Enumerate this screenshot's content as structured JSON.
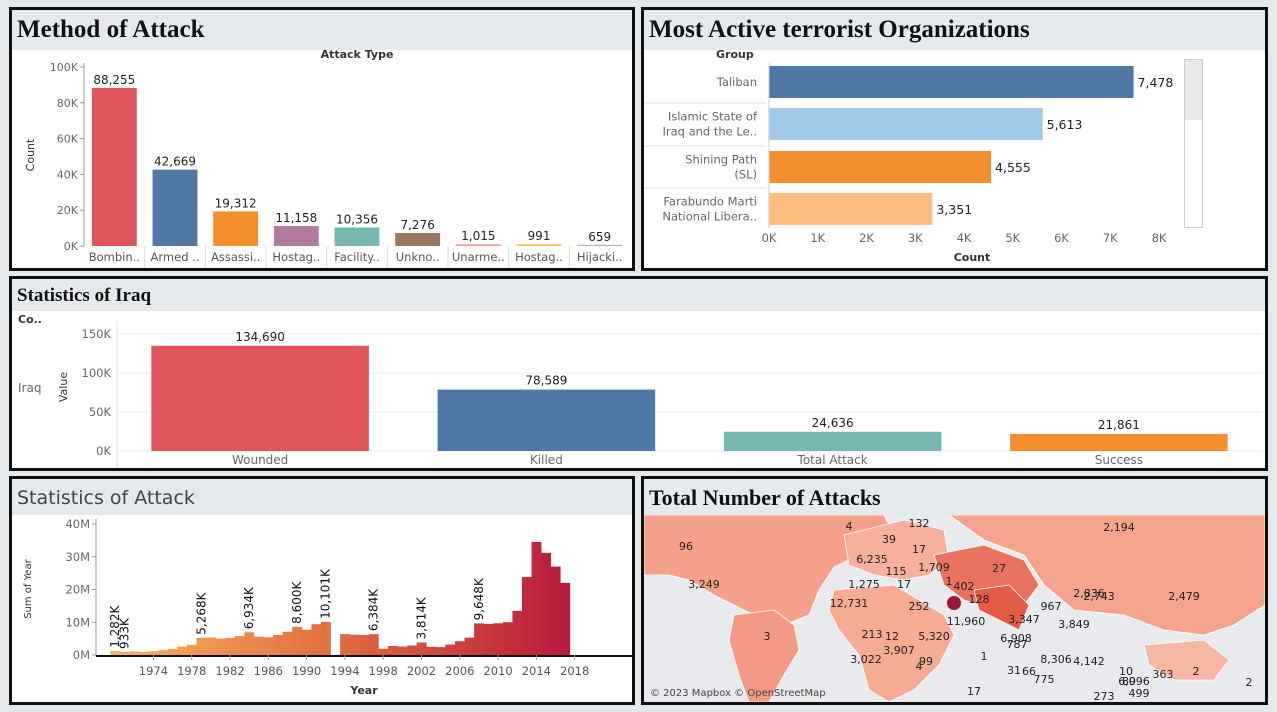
{
  "panels": {
    "method": {
      "title": "Method of Attack"
    },
    "groups": {
      "title": "Most Active terrorist Organizations"
    },
    "iraq": {
      "title": "Statistics of Iraq"
    },
    "attack_stats": {
      "title": "Statistics of Attack"
    },
    "map": {
      "title": "Total Number of Attacks",
      "attribution": "© 2023 Mapbox © OpenStreetMap"
    }
  },
  "colors": {
    "red": "#e15759",
    "blue": "#4e79a7",
    "orange": "#f28e2b",
    "purple": "#b07aa1",
    "teal": "#76b7b2",
    "brown": "#9c755f",
    "pink": "#ff9da7",
    "yellow": "#edc948",
    "grey": "#bab0ac",
    "lightblue": "#a0cbe8",
    "peach": "#ffbe7d"
  },
  "chart_data": [
    {
      "type": "bar",
      "title": "Attack Type",
      "ylabel": "Count",
      "categories": [
        "Bombin..",
        "Armed ..",
        "Assassi..",
        "Hostag..",
        "Facility..",
        "Unkno..",
        "Unarme..",
        "Hostag..",
        "Hijacki.."
      ],
      "values": [
        88255,
        42669,
        19312,
        11158,
        10356,
        7276,
        1015,
        991,
        659
      ],
      "value_labels": [
        "88,255",
        "42,669",
        "19,312",
        "11,158",
        "10,356",
        "7,276",
        "1,015",
        "991",
        "659"
      ],
      "bar_colors": [
        "#e15759",
        "#4e79a7",
        "#f28e2b",
        "#b07aa1",
        "#76b7b2",
        "#9c755f",
        "#ff9da7",
        "#edc948",
        "#bab0ac"
      ],
      "ylim": [
        0,
        100000
      ],
      "yticks": [
        0,
        20000,
        40000,
        60000,
        80000,
        100000
      ],
      "ytick_labels": [
        "0K",
        "20K",
        "40K",
        "60K",
        "80K",
        "100K"
      ]
    },
    {
      "type": "bar",
      "orientation": "horizontal",
      "row_header": "Group",
      "xlabel": "Count",
      "categories": [
        [
          "Taliban"
        ],
        [
          "Islamic State of",
          "Iraq and the Le.."
        ],
        [
          "Shining Path",
          "(SL)"
        ],
        [
          "Farabundo Marti",
          "National Libera.."
        ]
      ],
      "values": [
        7478,
        5613,
        4555,
        3351
      ],
      "value_labels": [
        "7,478",
        "5,613",
        "4,555",
        "3,351"
      ],
      "bar_colors": [
        "#4e79a7",
        "#a0cbe8",
        "#f28e2b",
        "#ffbe7d"
      ],
      "xlim": [
        0,
        8000
      ],
      "xticks": [
        0,
        1000,
        2000,
        3000,
        4000,
        5000,
        6000,
        7000,
        8000
      ],
      "xtick_labels": [
        "0K",
        "1K",
        "2K",
        "3K",
        "4K",
        "5K",
        "6K",
        "7K",
        "8K"
      ]
    },
    {
      "type": "bar",
      "row_header": "Co..",
      "row_label": "Iraq",
      "ylabel": "Value",
      "categories": [
        "Wounded",
        "Killed",
        "Total Attack",
        "Success"
      ],
      "values": [
        134690,
        78589,
        24636,
        21861
      ],
      "value_labels": [
        "134,690",
        "78,589",
        "24,636",
        "21,861"
      ],
      "bar_colors": [
        "#e15759",
        "#4e79a7",
        "#76b7b2",
        "#f28e2b"
      ],
      "ylim": [
        0,
        160000
      ],
      "yticks": [
        0,
        50000,
        100000,
        150000
      ],
      "ytick_labels": [
        "0K",
        "50K",
        "100K",
        "150K"
      ]
    },
    {
      "type": "bar",
      "xlabel": "Year",
      "ylabel": "Sum of Year",
      "years": [
        1970,
        1971,
        1972,
        1973,
        1974,
        1975,
        1976,
        1977,
        1978,
        1979,
        1980,
        1981,
        1982,
        1983,
        1984,
        1985,
        1986,
        1987,
        1988,
        1989,
        1990,
        1991,
        1992,
        1994,
        1995,
        1996,
        1997,
        1998,
        1999,
        2000,
        2001,
        2002,
        2003,
        2004,
        2005,
        2006,
        2007,
        2008,
        2009,
        2010,
        2011,
        2012,
        2013,
        2014,
        2015,
        2016,
        2017
      ],
      "values": [
        1282000,
        933000,
        1120000,
        940000,
        1160000,
        1480000,
        1840000,
        2540000,
        3080000,
        5268000,
        5340000,
        5020000,
        5220000,
        5780000,
        6934000,
        5600000,
        5400000,
        6140000,
        7100000,
        8600000,
        7700000,
        9400000,
        10101000,
        6384000,
        6200000,
        6100000,
        6384000,
        1900000,
        2750000,
        2600000,
        2900000,
        3814000,
        2500000,
        2400000,
        3200000,
        4200000,
        5300000,
        9648000,
        9500000,
        9700000,
        10000000,
        13500000,
        23800000,
        34500000,
        31200000,
        27000000,
        22000000
      ],
      "labels": {
        "1970": "1,282K",
        "1971": "933K",
        "1979": "5,268K",
        "1984": "6,934K",
        "1989": "8,600K",
        "1992": "10,101K",
        "1997": "6,384K",
        "2002": "3,814K",
        "2008": "9,648K"
      },
      "ylim": [
        0,
        40000000
      ],
      "yticks": [
        0,
        10000000,
        20000000,
        30000000,
        40000000
      ],
      "ytick_labels": [
        "0M",
        "10M",
        "20M",
        "30M",
        "40M"
      ],
      "xticks": [
        1974,
        1978,
        1982,
        1986,
        1990,
        1994,
        1998,
        2002,
        2006,
        2010,
        2014,
        2018
      ],
      "xtick_labels": [
        "1974",
        "1978",
        "1982",
        "1986",
        "1990",
        "1994",
        "1998",
        "2002",
        "2006",
        "2010",
        "2014",
        "2018"
      ],
      "color_gradient": [
        "#f7b35c",
        "#e06b3e",
        "#b81c3c"
      ]
    }
  ],
  "map_labels": [
    "4",
    "132",
    "39",
    "17",
    "2,194",
    "96",
    "6,235",
    "115",
    "1,709",
    "27",
    "2,836",
    "3,249",
    "1,275",
    "17",
    "1",
    "402",
    "2,743",
    "2,479",
    "12,731",
    "252",
    "128",
    "967",
    "3,347",
    "11,960",
    "3,849",
    "6,908",
    "5,320",
    "213",
    "12",
    "3,907",
    "3,022",
    "99",
    "787",
    "8,306",
    "66",
    "775",
    "4,142",
    "10",
    "89",
    "6,096",
    "273",
    "499",
    "363",
    "2",
    "2",
    "4",
    "31",
    "17",
    "1",
    "3"
  ]
}
